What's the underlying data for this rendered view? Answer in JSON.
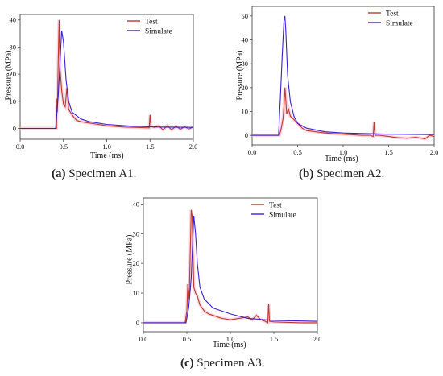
{
  "colors": {
    "test": "#c0392b",
    "simulate": "#3b1fd6",
    "axis": "#333333",
    "halo": "#f3c6d8"
  },
  "chart_data": [
    {
      "type": "line",
      "caption_label": "(a)",
      "caption_text": " Specimen A1.",
      "xlabel": "Time (ms)",
      "ylabel": "Pressure (MPa)",
      "xlim": [
        0.0,
        2.0
      ],
      "ylim": [
        -4,
        42
      ],
      "xticks": [
        "0.0",
        "0.5",
        "1.0",
        "1.5",
        "2.0"
      ],
      "yticks": [
        0,
        10,
        20,
        30,
        40
      ],
      "legend_position": "top-right",
      "series": [
        {
          "name": "Test",
          "color_key": "test",
          "points": [
            [
              0.0,
              0
            ],
            [
              0.42,
              0
            ],
            [
              0.425,
              11
            ],
            [
              0.43,
              6
            ],
            [
              0.44,
              25
            ],
            [
              0.45,
              40
            ],
            [
              0.46,
              22
            ],
            [
              0.48,
              14
            ],
            [
              0.5,
              9
            ],
            [
              0.52,
              8
            ],
            [
              0.54,
              15
            ],
            [
              0.56,
              7
            ],
            [
              0.6,
              5
            ],
            [
              0.65,
              3
            ],
            [
              0.7,
              2.5
            ],
            [
              0.8,
              2
            ],
            [
              0.9,
              1.5
            ],
            [
              1.0,
              1
            ],
            [
              1.2,
              0.5
            ],
            [
              1.4,
              0.3
            ],
            [
              1.49,
              0.2
            ],
            [
              1.5,
              5
            ],
            [
              1.51,
              0.8
            ],
            [
              1.55,
              0.4
            ],
            [
              1.6,
              1
            ],
            [
              1.65,
              -0.5
            ],
            [
              1.7,
              1
            ],
            [
              1.75,
              -0.5
            ],
            [
              1.8,
              0.8
            ],
            [
              1.85,
              -0.3
            ],
            [
              1.9,
              0.6
            ],
            [
              1.95,
              -0.2
            ],
            [
              2.0,
              0.5
            ]
          ]
        },
        {
          "name": "Simulate",
          "color_key": "simulate",
          "points": [
            [
              0.0,
              0
            ],
            [
              0.41,
              0
            ],
            [
              0.44,
              12
            ],
            [
              0.47,
              30
            ],
            [
              0.48,
              36
            ],
            [
              0.5,
              32
            ],
            [
              0.53,
              18
            ],
            [
              0.56,
              10
            ],
            [
              0.6,
              6
            ],
            [
              0.7,
              3.5
            ],
            [
              0.8,
              2.5
            ],
            [
              1.0,
              1.5
            ],
            [
              1.3,
              0.8
            ],
            [
              1.6,
              0.5
            ],
            [
              2.0,
              0.4
            ]
          ]
        }
      ]
    },
    {
      "type": "line",
      "caption_label": "(b)",
      "caption_text": " Specimen A2.",
      "xlabel": "Time (ms)",
      "ylabel": "Pressure (MPa)",
      "xlim": [
        0.0,
        2.0
      ],
      "ylim": [
        -4,
        54
      ],
      "xticks": [
        "0.0",
        "0.5",
        "1.0",
        "1.5",
        "2.0"
      ],
      "yticks": [
        0,
        10,
        20,
        30,
        40,
        50
      ],
      "legend_position": "top-right",
      "series": [
        {
          "name": "Test",
          "color_key": "test",
          "points": [
            [
              0.0,
              0
            ],
            [
              0.3,
              0
            ],
            [
              0.32,
              3
            ],
            [
              0.34,
              7
            ],
            [
              0.35,
              12
            ],
            [
              0.36,
              20
            ],
            [
              0.37,
              15
            ],
            [
              0.38,
              9
            ],
            [
              0.4,
              11
            ],
            [
              0.42,
              8
            ],
            [
              0.45,
              7
            ],
            [
              0.5,
              5
            ],
            [
              0.55,
              3
            ],
            [
              0.6,
              2
            ],
            [
              0.7,
              1.5
            ],
            [
              0.8,
              1
            ],
            [
              1.0,
              0.5
            ],
            [
              1.2,
              0
            ],
            [
              1.3,
              0
            ],
            [
              1.33,
              -0.5
            ],
            [
              1.34,
              5.5
            ],
            [
              1.35,
              0
            ],
            [
              1.4,
              0
            ],
            [
              1.5,
              -0.5
            ],
            [
              1.6,
              -1
            ],
            [
              1.7,
              -1.2
            ],
            [
              1.8,
              -0.8
            ],
            [
              1.9,
              -1.5
            ],
            [
              1.95,
              0
            ],
            [
              2.0,
              -0.5
            ]
          ]
        },
        {
          "name": "Simulate",
          "color_key": "simulate",
          "points": [
            [
              0.0,
              0
            ],
            [
              0.29,
              0
            ],
            [
              0.31,
              15
            ],
            [
              0.33,
              33
            ],
            [
              0.35,
              48
            ],
            [
              0.36,
              50
            ],
            [
              0.37,
              44
            ],
            [
              0.39,
              25
            ],
            [
              0.42,
              14
            ],
            [
              0.46,
              8
            ],
            [
              0.5,
              5
            ],
            [
              0.6,
              3
            ],
            [
              0.8,
              1.5
            ],
            [
              1.0,
              1
            ],
            [
              1.5,
              0.5
            ],
            [
              2.0,
              0.3
            ]
          ]
        }
      ]
    },
    {
      "type": "line",
      "caption_label": "(c)",
      "caption_text": " Specimen A3.",
      "xlabel": "Time (ms)",
      "ylabel": "Pressure (MPa)",
      "xlim": [
        0.0,
        2.0
      ],
      "ylim": [
        -3,
        42
      ],
      "xticks": [
        "0.0",
        "0.5",
        "1.0",
        "1.5",
        "2.0"
      ],
      "yticks": [
        0,
        10,
        20,
        30,
        40
      ],
      "legend_position": "top-right",
      "series": [
        {
          "name": "Test",
          "color_key": "test",
          "points": [
            [
              0.0,
              0
            ],
            [
              0.48,
              0
            ],
            [
              0.5,
              4
            ],
            [
              0.51,
              13
            ],
            [
              0.52,
              8
            ],
            [
              0.53,
              12
            ],
            [
              0.55,
              38
            ],
            [
              0.56,
              36
            ],
            [
              0.58,
              12
            ],
            [
              0.6,
              10
            ],
            [
              0.62,
              9
            ],
            [
              0.65,
              6
            ],
            [
              0.7,
              4
            ],
            [
              0.75,
              3
            ],
            [
              0.8,
              2.5
            ],
            [
              0.9,
              1.5
            ],
            [
              1.0,
              1
            ],
            [
              1.1,
              1.5
            ],
            [
              1.2,
              2
            ],
            [
              1.25,
              1
            ],
            [
              1.3,
              2.5
            ],
            [
              1.35,
              1
            ],
            [
              1.4,
              0.5
            ],
            [
              1.43,
              0
            ],
            [
              1.44,
              6.5
            ],
            [
              1.45,
              0.5
            ],
            [
              1.5,
              0.3
            ],
            [
              1.6,
              0.2
            ],
            [
              1.8,
              0
            ],
            [
              2.0,
              0
            ]
          ]
        },
        {
          "name": "Simulate",
          "color_key": "simulate",
          "points": [
            [
              0.0,
              0
            ],
            [
              0.49,
              0
            ],
            [
              0.52,
              5
            ],
            [
              0.55,
              15
            ],
            [
              0.57,
              30
            ],
            [
              0.58,
              36
            ],
            [
              0.6,
              30
            ],
            [
              0.62,
              20
            ],
            [
              0.65,
              12
            ],
            [
              0.7,
              8
            ],
            [
              0.8,
              5
            ],
            [
              1.0,
              3
            ],
            [
              1.2,
              1.5
            ],
            [
              1.5,
              0.8
            ],
            [
              2.0,
              0.5
            ]
          ]
        }
      ]
    }
  ]
}
